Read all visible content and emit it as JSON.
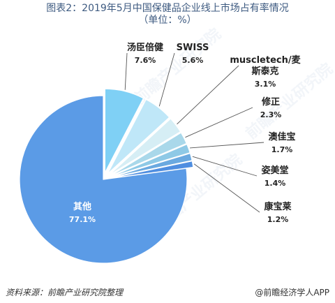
{
  "title": "图表2：2019年5月中国保健品企业线上市场占有率情况",
  "subtitle": "（单位：%）",
  "source": "资料来源：前瞻产业研究院整理",
  "brand": "@前瞻经济学人APP",
  "watermark": "前瞻产业研究院",
  "chart_data": {
    "type": "pie",
    "unit": "%",
    "start_angle_deg": 0,
    "direction": "clockwise",
    "slices": [
      {
        "label": "汤臣倍健",
        "value": 7.6,
        "value_label": "7.6%",
        "color": "#7fd0f5",
        "exploded": true
      },
      {
        "label": "SWISS",
        "value": 5.6,
        "value_label": "5.6%",
        "color": "#bfe7f8",
        "exploded": true
      },
      {
        "label": "muscletech/麦斯泰克",
        "value": 3.1,
        "value_label": "3.1%",
        "color": "#d6eef5",
        "exploded": true
      },
      {
        "label": "修正",
        "value": 2.3,
        "value_label": "2.3%",
        "color": "#a9d8ea",
        "exploded": true
      },
      {
        "label": "澳佳宝",
        "value": 1.7,
        "value_label": "1.7%",
        "color": "#8ec9e6",
        "exploded": true
      },
      {
        "label": "姿美堂",
        "value": 1.4,
        "value_label": "1.4%",
        "color": "#6aa9e0",
        "exploded": true
      },
      {
        "label": "康宝莱",
        "value": 1.2,
        "value_label": "1.2%",
        "color": "#4f8ee0",
        "exploded": true
      },
      {
        "label": "其他",
        "value": 77.1,
        "value_label": "77.1%",
        "color": "#5b9be6",
        "exploded": false
      }
    ]
  }
}
